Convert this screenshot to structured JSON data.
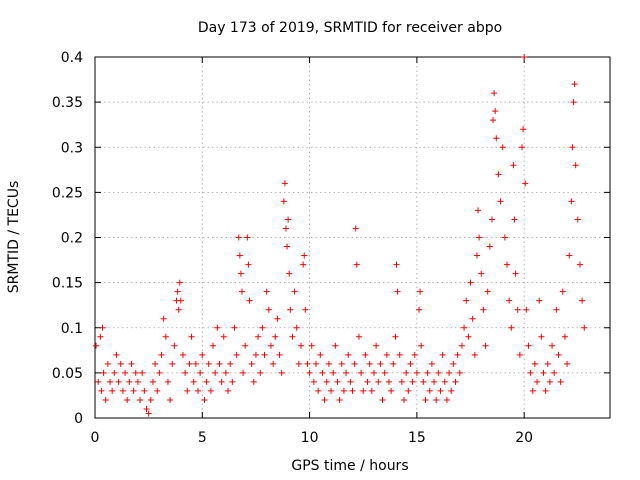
{
  "chart_data": {
    "type": "scatter",
    "title": "Day 173 of 2019, SRMTID for receiver abpo",
    "xlabel": "GPS time / hours",
    "ylabel": "SRMTID / TECUs",
    "xlim": [
      0,
      24
    ],
    "ylim": [
      0,
      0.4
    ],
    "xticks": [
      0,
      5,
      10,
      15,
      20
    ],
    "xtick_labels": [
      "0",
      "5",
      "10",
      "15",
      "20"
    ],
    "yticks": [
      0,
      0.05,
      0.1,
      0.15,
      0.2,
      0.25,
      0.3,
      0.35,
      0.4
    ],
    "ytick_labels": [
      "0",
      "0.05",
      "0.1",
      "0.15",
      "0.2",
      "0.25",
      "0.3",
      "0.35",
      "0.4"
    ],
    "grid": true,
    "marker": "+",
    "series": [
      {
        "name": "SRMTID",
        "color": "#ff0000",
        "points": [
          [
            0.05,
            0.08
          ],
          [
            0.15,
            0.04
          ],
          [
            0.25,
            0.09
          ],
          [
            0.3,
            0.03
          ],
          [
            0.35,
            0.1
          ],
          [
            0.4,
            0.05
          ],
          [
            0.5,
            0.02
          ],
          [
            0.6,
            0.06
          ],
          [
            0.7,
            0.04
          ],
          [
            0.8,
            0.03
          ],
          [
            0.9,
            0.05
          ],
          [
            1.0,
            0.07
          ],
          [
            1.1,
            0.04
          ],
          [
            1.2,
            0.06
          ],
          [
            1.3,
            0.03
          ],
          [
            1.4,
            0.05
          ],
          [
            1.5,
            0.02
          ],
          [
            1.6,
            0.04
          ],
          [
            1.7,
            0.06
          ],
          [
            1.8,
            0.03
          ],
          [
            1.9,
            0.05
          ],
          [
            2.0,
            0.04
          ],
          [
            2.1,
            0.02
          ],
          [
            2.2,
            0.05
          ],
          [
            2.3,
            0.03
          ],
          [
            2.4,
            0.01
          ],
          [
            2.5,
            0.005
          ],
          [
            2.6,
            0.02
          ],
          [
            2.7,
            0.04
          ],
          [
            2.8,
            0.06
          ],
          [
            2.9,
            0.03
          ],
          [
            3.0,
            0.05
          ],
          [
            3.1,
            0.07
          ],
          [
            3.2,
            0.11
          ],
          [
            3.3,
            0.09
          ],
          [
            3.4,
            0.04
          ],
          [
            3.5,
            0.02
          ],
          [
            3.6,
            0.06
          ],
          [
            3.7,
            0.08
          ],
          [
            3.8,
            0.13
          ],
          [
            3.85,
            0.14
          ],
          [
            3.9,
            0.12
          ],
          [
            3.95,
            0.15
          ],
          [
            4.0,
            0.13
          ],
          [
            4.1,
            0.07
          ],
          [
            4.2,
            0.05
          ],
          [
            4.3,
            0.03
          ],
          [
            4.4,
            0.06
          ],
          [
            4.5,
            0.09
          ],
          [
            4.6,
            0.04
          ],
          [
            4.7,
            0.06
          ],
          [
            4.8,
            0.03
          ],
          [
            4.9,
            0.05
          ],
          [
            5.0,
            0.07
          ],
          [
            5.1,
            0.02
          ],
          [
            5.2,
            0.04
          ],
          [
            5.3,
            0.06
          ],
          [
            5.4,
            0.03
          ],
          [
            5.5,
            0.08
          ],
          [
            5.6,
            0.05
          ],
          [
            5.7,
            0.1
          ],
          [
            5.8,
            0.06
          ],
          [
            5.9,
            0.04
          ],
          [
            6.0,
            0.09
          ],
          [
            6.1,
            0.05
          ],
          [
            6.2,
            0.03
          ],
          [
            6.3,
            0.06
          ],
          [
            6.4,
            0.04
          ],
          [
            6.5,
            0.1
          ],
          [
            6.6,
            0.07
          ],
          [
            6.7,
            0.2
          ],
          [
            6.75,
            0.18
          ],
          [
            6.8,
            0.16
          ],
          [
            6.85,
            0.14
          ],
          [
            6.9,
            0.05
          ],
          [
            7.0,
            0.08
          ],
          [
            7.1,
            0.2
          ],
          [
            7.15,
            0.17
          ],
          [
            7.2,
            0.13
          ],
          [
            7.3,
            0.06
          ],
          [
            7.4,
            0.04
          ],
          [
            7.5,
            0.07
          ],
          [
            7.6,
            0.09
          ],
          [
            7.7,
            0.05
          ],
          [
            7.8,
            0.1
          ],
          [
            7.9,
            0.07
          ],
          [
            8.0,
            0.14
          ],
          [
            8.1,
            0.12
          ],
          [
            8.2,
            0.08
          ],
          [
            8.3,
            0.06
          ],
          [
            8.4,
            0.09
          ],
          [
            8.5,
            0.11
          ],
          [
            8.6,
            0.07
          ],
          [
            8.7,
            0.05
          ],
          [
            8.8,
            0.24
          ],
          [
            8.85,
            0.26
          ],
          [
            8.9,
            0.21
          ],
          [
            8.95,
            0.19
          ],
          [
            9.0,
            0.22
          ],
          [
            9.05,
            0.16
          ],
          [
            9.1,
            0.12
          ],
          [
            9.2,
            0.09
          ],
          [
            9.3,
            0.14
          ],
          [
            9.4,
            0.1
          ],
          [
            9.5,
            0.06
          ],
          [
            9.6,
            0.08
          ],
          [
            9.7,
            0.17
          ],
          [
            9.75,
            0.18
          ],
          [
            9.8,
            0.12
          ],
          [
            9.9,
            0.06
          ],
          [
            10.0,
            0.05
          ],
          [
            10.1,
            0.08
          ],
          [
            10.2,
            0.04
          ],
          [
            10.3,
            0.06
          ],
          [
            10.4,
            0.03
          ],
          [
            10.5,
            0.07
          ],
          [
            10.6,
            0.05
          ],
          [
            10.7,
            0.02
          ],
          [
            10.8,
            0.04
          ],
          [
            10.9,
            0.06
          ],
          [
            11.0,
            0.03
          ],
          [
            11.1,
            0.05
          ],
          [
            11.2,
            0.08
          ],
          [
            11.3,
            0.04
          ],
          [
            11.4,
            0.02
          ],
          [
            11.5,
            0.06
          ],
          [
            11.6,
            0.03
          ],
          [
            11.7,
            0.05
          ],
          [
            11.8,
            0.07
          ],
          [
            11.9,
            0.04
          ],
          [
            12.0,
            0.03
          ],
          [
            12.1,
            0.06
          ],
          [
            12.15,
            0.21
          ],
          [
            12.2,
            0.17
          ],
          [
            12.3,
            0.09
          ],
          [
            12.4,
            0.05
          ],
          [
            12.5,
            0.03
          ],
          [
            12.6,
            0.07
          ],
          [
            12.7,
            0.04
          ],
          [
            12.8,
            0.06
          ],
          [
            12.9,
            0.03
          ],
          [
            13.0,
            0.05
          ],
          [
            13.1,
            0.08
          ],
          [
            13.2,
            0.04
          ],
          [
            13.3,
            0.06
          ],
          [
            13.4,
            0.02
          ],
          [
            13.5,
            0.05
          ],
          [
            13.6,
            0.07
          ],
          [
            13.7,
            0.04
          ],
          [
            13.8,
            0.03
          ],
          [
            13.9,
            0.06
          ],
          [
            14.0,
            0.09
          ],
          [
            14.05,
            0.17
          ],
          [
            14.1,
            0.14
          ],
          [
            14.2,
            0.07
          ],
          [
            14.3,
            0.04
          ],
          [
            14.4,
            0.02
          ],
          [
            14.5,
            0.05
          ],
          [
            14.6,
            0.03
          ],
          [
            14.7,
            0.06
          ],
          [
            14.8,
            0.04
          ],
          [
            14.9,
            0.07
          ],
          [
            15.0,
            0.05
          ],
          [
            15.1,
            0.12
          ],
          [
            15.15,
            0.14
          ],
          [
            15.2,
            0.08
          ],
          [
            15.3,
            0.04
          ],
          [
            15.4,
            0.02
          ],
          [
            15.5,
            0.05
          ],
          [
            15.6,
            0.03
          ],
          [
            15.7,
            0.06
          ],
          [
            15.8,
            0.04
          ],
          [
            15.9,
            0.02
          ],
          [
            16.0,
            0.05
          ],
          [
            16.1,
            0.03
          ],
          [
            16.2,
            0.07
          ],
          [
            16.3,
            0.04
          ],
          [
            16.4,
            0.02
          ],
          [
            16.5,
            0.05
          ],
          [
            16.6,
            0.03
          ],
          [
            16.7,
            0.06
          ],
          [
            16.8,
            0.04
          ],
          [
            16.9,
            0.07
          ],
          [
            17.0,
            0.05
          ],
          [
            17.1,
            0.08
          ],
          [
            17.2,
            0.1
          ],
          [
            17.3,
            0.13
          ],
          [
            17.4,
            0.09
          ],
          [
            17.5,
            0.15
          ],
          [
            17.6,
            0.11
          ],
          [
            17.7,
            0.07
          ],
          [
            17.8,
            0.18
          ],
          [
            17.85,
            0.23
          ],
          [
            17.9,
            0.2
          ],
          [
            18.0,
            0.16
          ],
          [
            18.1,
            0.12
          ],
          [
            18.2,
            0.08
          ],
          [
            18.3,
            0.14
          ],
          [
            18.4,
            0.19
          ],
          [
            18.5,
            0.22
          ],
          [
            18.55,
            0.33
          ],
          [
            18.6,
            0.36
          ],
          [
            18.65,
            0.34
          ],
          [
            18.7,
            0.31
          ],
          [
            18.8,
            0.27
          ],
          [
            18.9,
            0.24
          ],
          [
            19.0,
            0.3
          ],
          [
            19.1,
            0.2
          ],
          [
            19.2,
            0.17
          ],
          [
            19.3,
            0.13
          ],
          [
            19.4,
            0.1
          ],
          [
            19.5,
            0.28
          ],
          [
            19.55,
            0.22
          ],
          [
            19.6,
            0.16
          ],
          [
            19.7,
            0.12
          ],
          [
            19.8,
            0.07
          ],
          [
            19.9,
            0.3
          ],
          [
            19.95,
            0.32
          ],
          [
            20.0,
            0.4
          ],
          [
            20.05,
            0.26
          ],
          [
            20.1,
            0.12
          ],
          [
            20.2,
            0.08
          ],
          [
            20.3,
            0.05
          ],
          [
            20.4,
            0.03
          ],
          [
            20.5,
            0.06
          ],
          [
            20.6,
            0.04
          ],
          [
            20.7,
            0.13
          ],
          [
            20.8,
            0.09
          ],
          [
            20.9,
            0.05
          ],
          [
            21.0,
            0.03
          ],
          [
            21.1,
            0.06
          ],
          [
            21.2,
            0.04
          ],
          [
            21.3,
            0.08
          ],
          [
            21.4,
            0.05
          ],
          [
            21.5,
            0.12
          ],
          [
            21.6,
            0.07
          ],
          [
            21.7,
            0.04
          ],
          [
            21.8,
            0.14
          ],
          [
            21.9,
            0.09
          ],
          [
            22.0,
            0.06
          ],
          [
            22.1,
            0.18
          ],
          [
            22.2,
            0.24
          ],
          [
            22.25,
            0.3
          ],
          [
            22.3,
            0.35
          ],
          [
            22.35,
            0.37
          ],
          [
            22.4,
            0.28
          ],
          [
            22.5,
            0.22
          ],
          [
            22.6,
            0.17
          ],
          [
            22.7,
            0.13
          ],
          [
            22.8,
            0.1
          ]
        ]
      }
    ]
  }
}
